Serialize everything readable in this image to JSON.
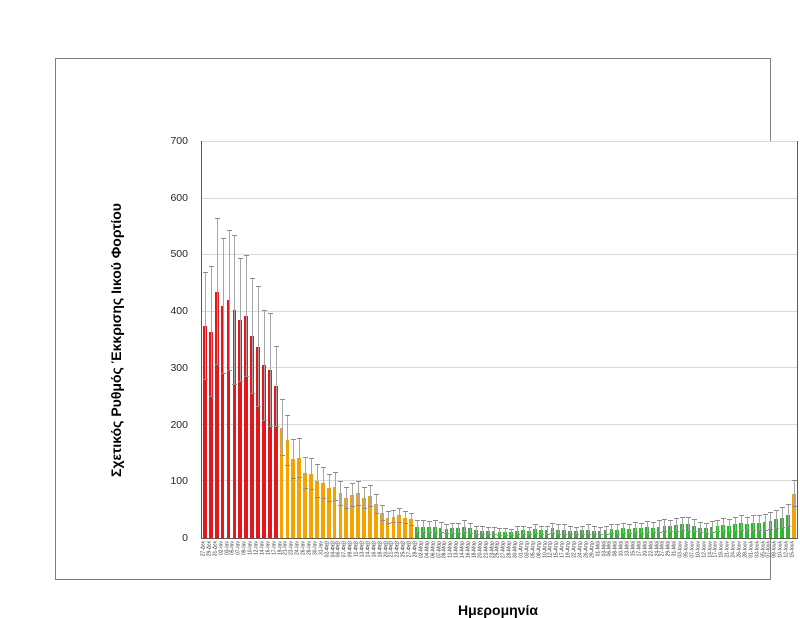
{
  "figure": {
    "y_axis_title": "Σχετικός Ρυθμός Έκκρισης Ιικού Φορτίου",
    "x_axis_title": "Ημερομηνία"
  },
  "chart_data": {
    "type": "bar",
    "title": "",
    "xlabel": "Ημερομηνία",
    "ylabel": "Σχετικός Ρυθμός Έκκρισης Ιικού Φορτίου",
    "ylim": [
      0,
      700
    ],
    "yticks": [
      0,
      100,
      200,
      300,
      400,
      500,
      600,
      700
    ],
    "grid": true,
    "legend": "none",
    "error_bars": "symmetric",
    "colors": {
      "red": "#e4181c",
      "orange": "#f4a300",
      "green": "#2eb82e",
      "whisker": "#a6a6a6",
      "gridline": "#d9d9d9",
      "plot_border": "#595959",
      "figure_border": "#7f7f7f"
    },
    "color_segments": [
      {
        "from": 0,
        "to": 12,
        "color": "red"
      },
      {
        "from": 13,
        "to": 35,
        "color": "orange"
      },
      {
        "from": 36,
        "to": 99,
        "color": "green"
      },
      {
        "from": 100,
        "to": 100,
        "color": "orange"
      }
    ],
    "categories": [
      "27-Δεκ",
      "29-Δεκ",
      "31-Δεκ",
      "02-Ιαν",
      "03-Ιαν",
      "05-Ιαν",
      "07-Ιαν",
      "09-Ιαν",
      "10-Ιαν",
      "12-Ιαν",
      "14-Ιαν",
      "16-Ιαν",
      "17-Ιαν",
      "19-Ιαν",
      "21-Ιαν",
      "23-Ιαν",
      "24-Ιαν",
      "26-Ιαν",
      "28-Ιαν",
      "30-Ιαν",
      "31-Ιαν",
      "02-Φεβ",
      "04-Φεβ",
      "06-Φεβ",
      "07-Φεβ",
      "09-Φεβ",
      "11-Φεβ",
      "13-Φεβ",
      "14-Φεβ",
      "16-Φεβ",
      "18-Φεβ",
      "20-Φεβ",
      "21-Φεβ",
      "23-Φεβ",
      "25-Φεβ",
      "27-Φεβ",
      "28-Φεβ",
      "02-Μαρ",
      "04-Μαρ",
      "06-Μαρ",
      "07-Μαρ",
      "09-Μαρ",
      "11-Μαρ",
      "13-Μαρ",
      "14-Μαρ",
      "16-Μαρ",
      "18-Μαρ",
      "20-Μαρ",
      "21-Μαρ",
      "23-Μαρ",
      "25-Μαρ",
      "27-Μαρ",
      "28-Μαρ",
      "30-Μαρ",
      "01-Απρ",
      "03-Απρ",
      "05-Απρ",
      "08-Απρ",
      "10-Απρ",
      "12-Απρ",
      "15-Απρ",
      "17-Απρ",
      "19-Απρ",
      "22-Απρ",
      "24-Απρ",
      "26-Απρ",
      "29-Απρ",
      "01-Μαϊ",
      "03-Μαϊ",
      "06-Μαϊ",
      "08-Μαϊ",
      "10-Μαϊ",
      "13-Μαϊ",
      "15-Μαϊ",
      "17-Μαϊ",
      "20-Μαϊ",
      "22-Μαϊ",
      "24-Μαϊ",
      "27-Μαϊ",
      "29-Μαϊ",
      "31-Μαϊ",
      "03-Ιουν",
      "05-Ιουν",
      "07-Ιουν",
      "10-Ιουν",
      "12-Ιουν",
      "14-Ιουν",
      "17-Ιουν",
      "19-Ιουν",
      "21-Ιουν",
      "24-Ιουν",
      "26-Ιουν",
      "28-Ιουν",
      "01-Ιουλ",
      "03-Ιουλ",
      "05-Ιουλ",
      "07-Ιουλ",
      "08-Ιουλ",
      "10-Ιουλ",
      "12-Ιουλ",
      "15-Ιουλ"
    ],
    "values": [
      375,
      365,
      435,
      410,
      420,
      403,
      385,
      392,
      357,
      338,
      305,
      297,
      268,
      195,
      173,
      140,
      141,
      115,
      113,
      100,
      97,
      88,
      91,
      79,
      71,
      76,
      79,
      71,
      74,
      60,
      44,
      36,
      38,
      40,
      36,
      33,
      20,
      20,
      19,
      20,
      18,
      16,
      17,
      17,
      20,
      17,
      14,
      13,
      12,
      12,
      11,
      11,
      10,
      13,
      14,
      12,
      16,
      14,
      14,
      17,
      15,
      15,
      13,
      12,
      14,
      15,
      13,
      12,
      14,
      16,
      15,
      17,
      16,
      18,
      17,
      19,
      18,
      20,
      22,
      21,
      23,
      25,
      24,
      22,
      18,
      17,
      19,
      21,
      23,
      22,
      24,
      26,
      25,
      27,
      26,
      28,
      30,
      33,
      36,
      40,
      78
    ],
    "errors": [
      95,
      115,
      130,
      120,
      125,
      132,
      110,
      108,
      103,
      107,
      98,
      100,
      72,
      50,
      45,
      35,
      35,
      28,
      28,
      30,
      28,
      25,
      26,
      22,
      20,
      22,
      22,
      20,
      20,
      18,
      14,
      12,
      12,
      13,
      12,
      11,
      11,
      11,
      11,
      11,
      10,
      9,
      10,
      10,
      11,
      10,
      8,
      8,
      7,
      7,
      7,
      7,
      6,
      8,
      8,
      7,
      9,
      8,
      8,
      10,
      9,
      9,
      8,
      7,
      8,
      9,
      8,
      7,
      8,
      9,
      9,
      10,
      9,
      10,
      10,
      11,
      10,
      11,
      12,
      11,
      12,
      13,
      13,
      12,
      10,
      10,
      11,
      11,
      12,
      12,
      13,
      14,
      13,
      14,
      14,
      15,
      16,
      17,
      18,
      20,
      24
    ]
  }
}
